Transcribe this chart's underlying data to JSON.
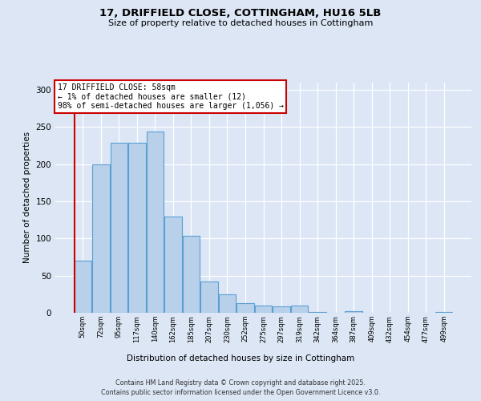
{
  "title1": "17, DRIFFIELD CLOSE, COTTINGHAM, HU16 5LB",
  "title2": "Size of property relative to detached houses in Cottingham",
  "xlabel": "Distribution of detached houses by size in Cottingham",
  "ylabel": "Number of detached properties",
  "categories": [
    "50sqm",
    "72sqm",
    "95sqm",
    "117sqm",
    "140sqm",
    "162sqm",
    "185sqm",
    "207sqm",
    "230sqm",
    "252sqm",
    "275sqm",
    "297sqm",
    "319sqm",
    "342sqm",
    "364sqm",
    "387sqm",
    "409sqm",
    "432sqm",
    "454sqm",
    "477sqm",
    "499sqm"
  ],
  "values": [
    70,
    199,
    229,
    229,
    244,
    129,
    104,
    42,
    25,
    13,
    10,
    9,
    10,
    1,
    0,
    2,
    0,
    0,
    0,
    0,
    1
  ],
  "bar_color": "#b8d0ea",
  "bar_edge_color": "#5a9fd4",
  "highlight_color": "#cc0000",
  "annotation_line1": "17 DRIFFIELD CLOSE: 58sqm",
  "annotation_line2": "← 1% of detached houses are smaller (12)",
  "annotation_line3": "98% of semi-detached houses are larger (1,056) →",
  "annotation_box_edgecolor": "#cc0000",
  "ylim": [
    0,
    310
  ],
  "yticks": [
    0,
    50,
    100,
    150,
    200,
    250,
    300
  ],
  "footer_line1": "Contains HM Land Registry data © Crown copyright and database right 2025.",
  "footer_line2": "Contains public sector information licensed under the Open Government Licence v3.0.",
  "bg_color": "#dce6f5",
  "grid_color": "#ffffff"
}
